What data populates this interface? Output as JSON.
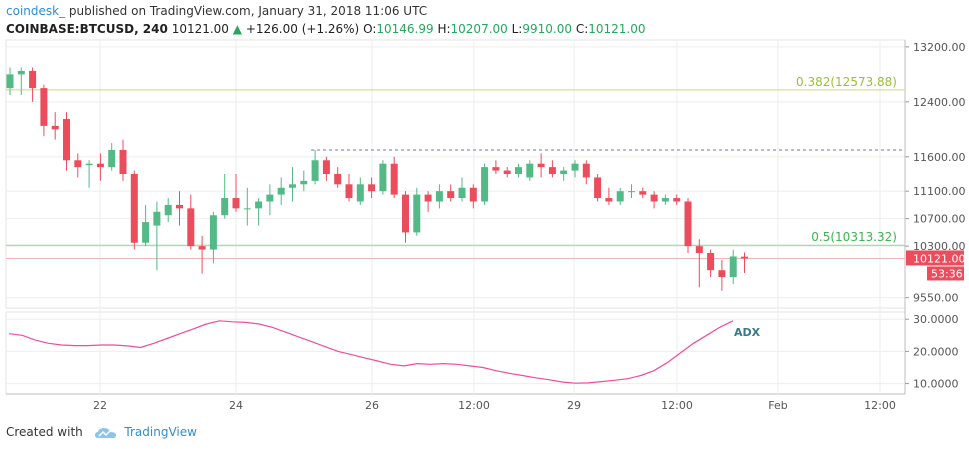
{
  "header": {
    "brand": "coindesk_",
    "published": "published on TradingView.com, January 31, 2018 11:06 UTC",
    "symbol": "COINBASE:BTCUSD, 240",
    "last": "10121.00",
    "arrow": "▲",
    "change": "+126.00 (+1.26%)",
    "open_label": "O:",
    "open": "10146.99",
    "high_label": "H:",
    "high": "10207.00",
    "low_label": "L:",
    "low": "9910.00",
    "close_label": "C:",
    "close": "10121.00"
  },
  "footer": {
    "created_with": "Created with",
    "brand": "TradingView"
  },
  "colors": {
    "up": "#53b987",
    "down": "#eb4d5c",
    "fib382": "#c7dd7e",
    "fib50": "#8ed98e",
    "price_line": "#f3b5b5",
    "resistance": "#6c6cd8",
    "adx": "#ee4d9a",
    "grid": "#eeeeee"
  },
  "chart_data": {
    "type": "candlestick",
    "price_axis": {
      "ticks": [
        13200,
        12400,
        11600,
        11100,
        10700,
        10300,
        9550
      ],
      "tick_labels": [
        "13200.00",
        "12400.00",
        "11600.00",
        "11100.00",
        "10700.00",
        "10300.00",
        "9550.00"
      ],
      "range": [
        9400,
        13300
      ]
    },
    "x_axis": {
      "tick_labels": [
        "22",
        "24",
        "26",
        "12:00",
        "29",
        "12:00",
        "Feb",
        "12:00"
      ]
    },
    "candles": [
      {
        "o": 12600,
        "h": 12900,
        "l": 12500,
        "c": 12800
      },
      {
        "o": 12800,
        "h": 12900,
        "l": 12500,
        "c": 12850
      },
      {
        "o": 12850,
        "h": 12900,
        "l": 12400,
        "c": 12600
      },
      {
        "o": 12600,
        "h": 12650,
        "l": 11900,
        "c": 12050
      },
      {
        "o": 12050,
        "h": 12250,
        "l": 11850,
        "c": 12000
      },
      {
        "o": 12150,
        "h": 12250,
        "l": 11400,
        "c": 11550
      },
      {
        "o": 11550,
        "h": 11650,
        "l": 11300,
        "c": 11450
      },
      {
        "o": 11480,
        "h": 11550,
        "l": 11150,
        "c": 11500
      },
      {
        "o": 11500,
        "h": 11650,
        "l": 11250,
        "c": 11450
      },
      {
        "o": 11450,
        "h": 11800,
        "l": 11400,
        "c": 11700
      },
      {
        "o": 11700,
        "h": 11850,
        "l": 11250,
        "c": 11350
      },
      {
        "o": 11350,
        "h": 11400,
        "l": 10250,
        "c": 10350
      },
      {
        "o": 10350,
        "h": 10900,
        "l": 10300,
        "c": 10650
      },
      {
        "o": 10600,
        "h": 10950,
        "l": 9950,
        "c": 10800
      },
      {
        "o": 10750,
        "h": 11000,
        "l": 10650,
        "c": 10900
      },
      {
        "o": 10900,
        "h": 11100,
        "l": 10600,
        "c": 10850
      },
      {
        "o": 10850,
        "h": 11050,
        "l": 10250,
        "c": 10300
      },
      {
        "o": 10300,
        "h": 10450,
        "l": 9900,
        "c": 10250
      },
      {
        "o": 10250,
        "h": 10800,
        "l": 10050,
        "c": 10750
      },
      {
        "o": 10750,
        "h": 11350,
        "l": 10700,
        "c": 11000
      },
      {
        "o": 11000,
        "h": 11350,
        "l": 10800,
        "c": 10850
      },
      {
        "o": 10850,
        "h": 11150,
        "l": 10600,
        "c": 10850
      },
      {
        "o": 10850,
        "h": 11000,
        "l": 10600,
        "c": 10950
      },
      {
        "o": 10950,
        "h": 11200,
        "l": 10750,
        "c": 11050
      },
      {
        "o": 11050,
        "h": 11300,
        "l": 10900,
        "c": 11150
      },
      {
        "o": 11150,
        "h": 11450,
        "l": 10950,
        "c": 11200
      },
      {
        "o": 11200,
        "h": 11400,
        "l": 11100,
        "c": 11250
      },
      {
        "o": 11250,
        "h": 11700,
        "l": 11200,
        "c": 11550
      },
      {
        "o": 11550,
        "h": 11600,
        "l": 11250,
        "c": 11350
      },
      {
        "o": 11350,
        "h": 11450,
        "l": 11150,
        "c": 11200
      },
      {
        "o": 11200,
        "h": 11350,
        "l": 10950,
        "c": 11000
      },
      {
        "o": 10950,
        "h": 11300,
        "l": 10900,
        "c": 11200
      },
      {
        "o": 11200,
        "h": 11300,
        "l": 11000,
        "c": 11100
      },
      {
        "o": 11100,
        "h": 11550,
        "l": 11050,
        "c": 11500
      },
      {
        "o": 11500,
        "h": 11600,
        "l": 11000,
        "c": 11050
      },
      {
        "o": 11050,
        "h": 11100,
        "l": 10350,
        "c": 10500
      },
      {
        "o": 10500,
        "h": 11150,
        "l": 10450,
        "c": 11050
      },
      {
        "o": 11050,
        "h": 11100,
        "l": 10800,
        "c": 10950
      },
      {
        "o": 10950,
        "h": 11200,
        "l": 10850,
        "c": 11100
      },
      {
        "o": 11100,
        "h": 11200,
        "l": 10950,
        "c": 11000
      },
      {
        "o": 11000,
        "h": 11300,
        "l": 10950,
        "c": 11150
      },
      {
        "o": 11150,
        "h": 11200,
        "l": 10850,
        "c": 10950
      },
      {
        "o": 10950,
        "h": 11500,
        "l": 10900,
        "c": 11450
      },
      {
        "o": 11450,
        "h": 11550,
        "l": 11350,
        "c": 11400
      },
      {
        "o": 11400,
        "h": 11450,
        "l": 11300,
        "c": 11350
      },
      {
        "o": 11350,
        "h": 11500,
        "l": 11300,
        "c": 11450
      },
      {
        "o": 11300,
        "h": 11550,
        "l": 11250,
        "c": 11500
      },
      {
        "o": 11500,
        "h": 11650,
        "l": 11300,
        "c": 11450
      },
      {
        "o": 11450,
        "h": 11550,
        "l": 11300,
        "c": 11350
      },
      {
        "o": 11350,
        "h": 11450,
        "l": 11250,
        "c": 11400
      },
      {
        "o": 11400,
        "h": 11550,
        "l": 11300,
        "c": 11500
      },
      {
        "o": 11500,
        "h": 11550,
        "l": 11200,
        "c": 11300
      },
      {
        "o": 11300,
        "h": 11350,
        "l": 10950,
        "c": 11000
      },
      {
        "o": 11000,
        "h": 11150,
        "l": 10900,
        "c": 10950
      },
      {
        "o": 10950,
        "h": 11150,
        "l": 10900,
        "c": 11100
      },
      {
        "o": 11100,
        "h": 11200,
        "l": 11000,
        "c": 11100
      },
      {
        "o": 11100,
        "h": 11150,
        "l": 11000,
        "c": 11050
      },
      {
        "o": 11050,
        "h": 11100,
        "l": 10850,
        "c": 10950
      },
      {
        "o": 10950,
        "h": 11050,
        "l": 10900,
        "c": 11000
      },
      {
        "o": 11000,
        "h": 11050,
        "l": 10900,
        "c": 10950
      },
      {
        "o": 10950,
        "h": 11000,
        "l": 10200,
        "c": 10300
      },
      {
        "o": 10300,
        "h": 10400,
        "l": 9700,
        "c": 10200
      },
      {
        "o": 10200,
        "h": 10250,
        "l": 9850,
        "c": 9950
      },
      {
        "o": 9950,
        "h": 10100,
        "l": 9650,
        "c": 9850
      },
      {
        "o": 9850,
        "h": 10250,
        "l": 9750,
        "c": 10150
      },
      {
        "o": 10146.99,
        "h": 10207,
        "l": 9910,
        "c": 10121
      }
    ],
    "fib_levels": [
      {
        "label": "0.382(12573.88)",
        "value": 12573.88
      },
      {
        "label": "0.5(10313.32)",
        "value": 10313.32
      }
    ],
    "resistance": {
      "value": 11700,
      "from_index": 27
    },
    "current_price": {
      "label": "10121.00",
      "value": 10121
    },
    "countdown": {
      "label": "53:36"
    },
    "adx": {
      "label": "ADX",
      "ticks": [
        30,
        20,
        10
      ],
      "tick_labels": [
        "30.0000",
        "20.0000",
        "10.0000"
      ],
      "range": [
        8,
        31
      ],
      "values": [
        25.5,
        25,
        23.5,
        22.5,
        22,
        21.8,
        21.8,
        22,
        22,
        21.7,
        21.2,
        22.5,
        24,
        25.5,
        27,
        28.5,
        29.5,
        29.2,
        29,
        28.5,
        27.5,
        26,
        24.5,
        23,
        21.5,
        20,
        19,
        18,
        17,
        16,
        15.5,
        16.2,
        16,
        16.2,
        16,
        15.5,
        15,
        14,
        13.2,
        12.5,
        11.8,
        11.2,
        10.5,
        10.1,
        10.2,
        10.6,
        11,
        11.5,
        12.5,
        14,
        16.5,
        19.5,
        22.5,
        25,
        27.5,
        29.5
      ]
    }
  }
}
